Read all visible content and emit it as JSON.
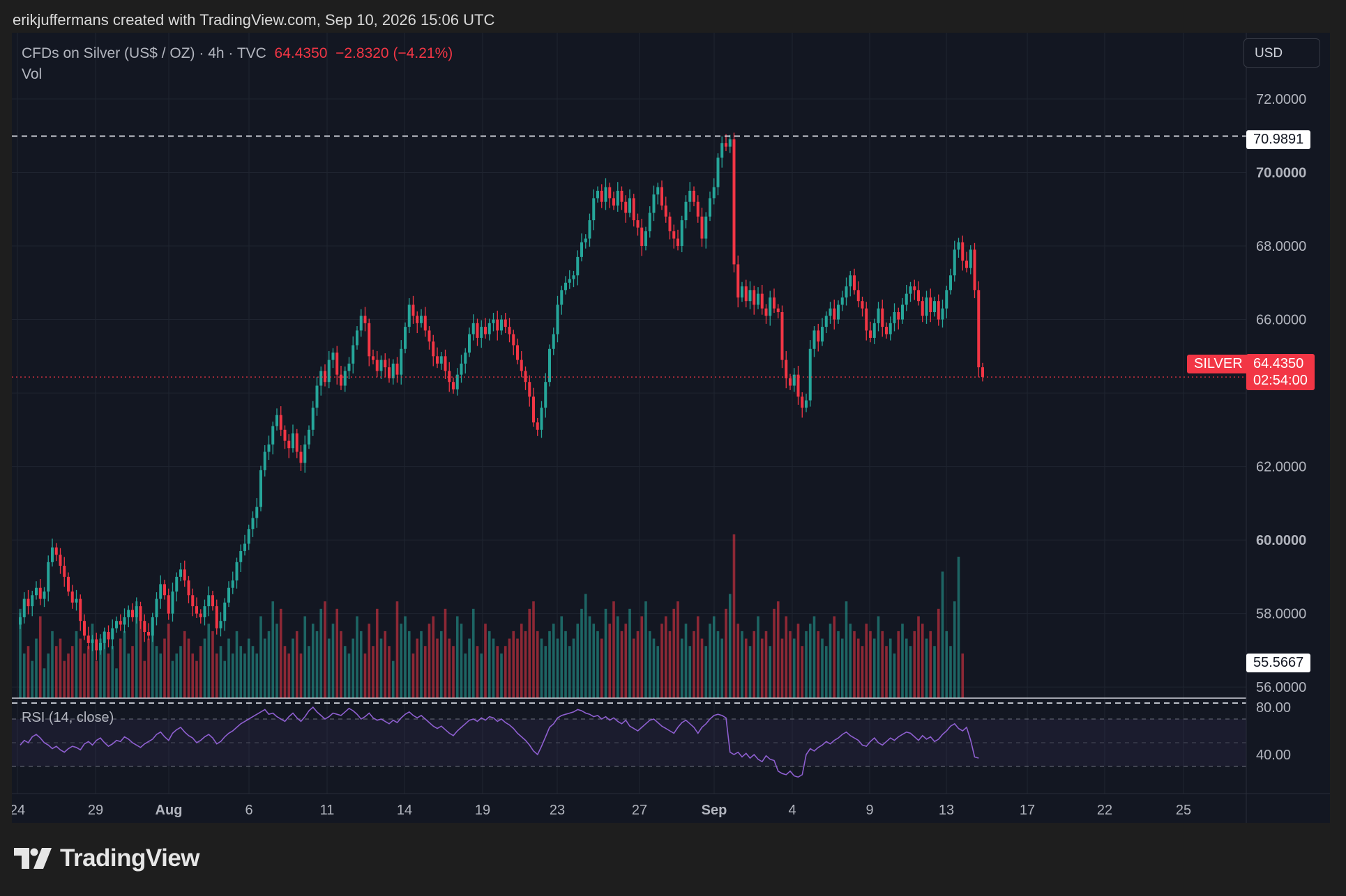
{
  "header": {
    "attribution": "erikjuffermans created with TradingView.com, Sep 10, 2026 15:06 UTC"
  },
  "legend": {
    "symbol_line": "CFDs on Silver (US$ / OZ) · 4h · TVC",
    "last_price": "64.4350",
    "change": "−2.8320 (−4.21%)",
    "volume_label": "Vol"
  },
  "currency_button": "USD",
  "price_tags": {
    "high_line": "70.9891",
    "low_line": "55.5667",
    "symbol": "SILVER",
    "last": "64.4350",
    "countdown": "02:54:00"
  },
  "rsi": {
    "label": "RSI (14, close)",
    "ticks": [
      "80.00",
      "40.00"
    ],
    "upper_band": 70,
    "lower_band": 30
  },
  "brand": {
    "name": "TradingView"
  },
  "colors": {
    "background": "#131722",
    "up": "#26a69a",
    "down": "#f23645",
    "rsi_line": "#8e5fd0",
    "grid": "#1f2430"
  },
  "chart_data": {
    "type": "candlestick",
    "title": "CFDs on Silver (US$ / OZ) · 4h · TVC",
    "x_ticks": [
      "24",
      "29",
      "Aug",
      "6",
      "11",
      "14",
      "19",
      "23",
      "27",
      "Sep",
      "4",
      "9",
      "13",
      "17",
      "22",
      "25"
    ],
    "y_ticks": [
      "72.0000",
      "70.0000",
      "68.0000",
      "66.0000",
      "62.0000",
      "60.0000",
      "58.0000",
      "56.0000"
    ],
    "y_range": [
      55.7,
      73.8
    ],
    "horizontal_lines": [
      70.9891,
      55.5667
    ],
    "last_price": 64.435,
    "close_series": [
      57.9,
      58.4,
      58.2,
      58.5,
      58.7,
      58.4,
      58.6,
      59.4,
      59.8,
      59.6,
      59.3,
      59.0,
      58.6,
      58.3,
      58.4,
      57.8,
      57.4,
      57.2,
      57.3,
      57.0,
      57.2,
      57.5,
      57.3,
      57.6,
      57.8,
      57.7,
      57.9,
      58.1,
      57.9,
      58.2,
      57.8,
      57.5,
      57.4,
      57.9,
      58.4,
      58.8,
      58.5,
      58.0,
      58.6,
      59.0,
      59.2,
      58.9,
      58.5,
      58.2,
      58.0,
      57.9,
      58.2,
      58.5,
      58.2,
      57.6,
      57.8,
      58.3,
      58.7,
      58.9,
      59.4,
      59.7,
      59.9,
      60.3,
      60.6,
      60.9,
      61.9,
      62.4,
      62.6,
      63.1,
      63.4,
      63.0,
      62.7,
      62.5,
      62.9,
      62.4,
      62.1,
      62.6,
      63.0,
      63.6,
      64.2,
      64.6,
      64.3,
      64.9,
      65.1,
      64.5,
      64.2,
      64.6,
      64.8,
      65.3,
      65.7,
      66.1,
      65.9,
      65.0,
      64.9,
      64.6,
      64.9,
      64.7,
      64.4,
      64.8,
      64.5,
      65.2,
      65.8,
      66.4,
      66.1,
      65.9,
      66.1,
      65.7,
      65.4,
      65.0,
      64.8,
      65.0,
      64.6,
      64.3,
      64.1,
      64.5,
      64.8,
      65.1,
      65.6,
      65.9,
      65.5,
      65.8,
      65.6,
      65.9,
      66.0,
      65.7,
      66.0,
      65.8,
      65.6,
      65.3,
      64.9,
      64.6,
      64.3,
      63.9,
      63.2,
      63.0,
      63.6,
      64.3,
      65.2,
      65.6,
      66.4,
      66.8,
      67.0,
      67.1,
      67.2,
      67.7,
      68.1,
      68.2,
      68.7,
      69.3,
      69.5,
      69.2,
      69.6,
      69.3,
      69.1,
      69.5,
      69.2,
      68.9,
      69.3,
      68.7,
      68.5,
      68.0,
      68.4,
      68.9,
      69.4,
      69.6,
      69.1,
      68.8,
      68.4,
      68.2,
      68.0,
      68.7,
      69.2,
      69.5,
      69.2,
      68.8,
      68.2,
      68.8,
      69.3,
      69.6,
      70.4,
      70.8,
      70.7,
      70.9,
      67.5,
      66.6,
      66.9,
      66.5,
      66.8,
      66.4,
      66.7,
      66.3,
      66.1,
      66.6,
      66.3,
      66.2,
      64.9,
      64.4,
      64.2,
      64.5,
      63.9,
      63.6,
      63.8,
      65.2,
      65.7,
      65.4,
      65.8,
      66.1,
      66.3,
      66.0,
      66.4,
      66.6,
      66.9,
      67.2,
      66.8,
      66.5,
      66.3,
      65.7,
      65.5,
      65.9,
      66.3,
      65.8,
      65.6,
      65.9,
      66.2,
      66.0,
      66.4,
      66.7,
      66.9,
      66.8,
      66.5,
      66.1,
      66.6,
      66.2,
      66.5,
      66.0,
      66.3,
      66.8,
      67.2,
      67.9,
      68.1,
      67.6,
      67.4,
      67.9,
      66.8,
      64.7,
      64.435
    ],
    "volume_series": [
      1.2,
      0.6,
      0.7,
      0.5,
      0.8,
      1.1,
      0.4,
      0.6,
      0.9,
      0.7,
      0.8,
      0.5,
      0.6,
      0.7,
      0.9,
      0.8,
      0.6,
      0.7,
      1.0,
      0.5,
      0.8,
      0.9,
      0.6,
      0.7,
      0.4,
      0.8,
      0.9,
      0.6,
      0.7,
      1.3,
      1.1,
      0.5,
      0.8,
      0.9,
      0.7,
      0.6,
      0.8,
      1.0,
      0.5,
      0.6,
      0.7,
      0.9,
      0.8,
      0.6,
      0.5,
      0.7,
      0.8,
      1.0,
      0.9,
      0.6,
      0.7,
      0.5,
      0.8,
      0.6,
      0.9,
      0.7,
      0.6,
      0.8,
      0.7,
      0.6,
      1.1,
      0.8,
      0.9,
      1.3,
      1.0,
      1.2,
      0.7,
      0.6,
      0.8,
      0.9,
      0.6,
      1.1,
      0.7,
      1.0,
      0.9,
      1.2,
      1.3,
      0.8,
      1.0,
      1.2,
      0.9,
      0.7,
      0.6,
      0.8,
      1.1,
      0.9,
      0.6,
      1.0,
      0.7,
      1.2,
      0.8,
      0.9,
      0.7,
      0.5,
      1.3,
      1.0,
      1.1,
      0.9,
      0.6,
      0.8,
      0.9,
      0.7,
      1.0,
      1.1,
      0.8,
      0.9,
      1.2,
      0.8,
      0.7,
      1.1,
      1.0,
      0.6,
      0.8,
      1.2,
      0.7,
      0.6,
      1.0,
      0.9,
      0.8,
      0.7,
      0.6,
      0.7,
      0.8,
      0.9,
      0.8,
      1.0,
      0.9,
      1.2,
      1.3,
      0.9,
      0.8,
      0.7,
      0.9,
      1.0,
      0.8,
      1.1,
      0.9,
      0.7,
      0.8,
      1.0,
      1.2,
      1.4,
      1.1,
      1.0,
      0.9,
      0.8,
      1.2,
      1.0,
      1.3,
      1.1,
      0.9,
      1.0,
      1.2,
      0.8,
      0.9,
      1.1,
      1.3,
      0.9,
      0.8,
      0.7,
      1.0,
      1.1,
      0.9,
      1.2,
      1.3,
      0.8,
      1.0,
      0.7,
      0.9,
      1.1,
      0.8,
      0.7,
      1.0,
      1.1,
      0.9,
      0.8,
      1.2,
      1.4,
      2.2,
      1.0,
      0.9,
      0.8,
      0.7,
      0.9,
      1.1,
      0.8,
      0.9,
      0.7,
      1.2,
      1.3,
      0.8,
      1.1,
      0.9,
      0.8,
      1.0,
      0.7,
      0.9,
      1.0,
      1.1,
      0.9,
      0.8,
      0.7,
      1.0,
      1.1,
      0.9,
      0.8,
      1.3,
      1.0,
      0.9,
      0.8,
      0.7,
      1.0,
      0.9,
      0.8,
      1.1,
      0.9,
      0.7,
      0.8,
      0.6,
      0.9,
      1.0,
      0.8,
      0.7,
      0.9,
      1.1,
      1.0,
      0.8,
      0.9,
      0.7,
      1.2,
      1.7,
      0.9,
      0.7,
      1.3,
      1.9,
      0.6
    ],
    "rsi_series": [
      48,
      52,
      50,
      55,
      57,
      54,
      50,
      48,
      45,
      47,
      44,
      42,
      45,
      47,
      46,
      44,
      49,
      51,
      48,
      52,
      54,
      50,
      47,
      49,
      52,
      51,
      55,
      53,
      50,
      48,
      46,
      49,
      51,
      53,
      57,
      59,
      55,
      52,
      58,
      61,
      63,
      59,
      56,
      54,
      50,
      52,
      55,
      57,
      54,
      49,
      51,
      55,
      58,
      60,
      63,
      66,
      68,
      70,
      72,
      74,
      76,
      78,
      74,
      75,
      72,
      70,
      68,
      72,
      75,
      71,
      68,
      72,
      77,
      80,
      76,
      73,
      70,
      72,
      75,
      74,
      73,
      76,
      79,
      77,
      74,
      70,
      72,
      75,
      71,
      69,
      70,
      68,
      66,
      69,
      67,
      71,
      74,
      76,
      73,
      71,
      73,
      70,
      67,
      64,
      62,
      64,
      61,
      58,
      56,
      60,
      63,
      66,
      69,
      70,
      68,
      71,
      69,
      72,
      71,
      68,
      70,
      67,
      65,
      62,
      58,
      55,
      52,
      48,
      43,
      40,
      47,
      55,
      63,
      66,
      71,
      73,
      74,
      75,
      76,
      78,
      77,
      75,
      74,
      72,
      73,
      70,
      72,
      69,
      71,
      68,
      66,
      69,
      64,
      62,
      60,
      63,
      66,
      69,
      70,
      67,
      64,
      62,
      60,
      58,
      63,
      67,
      69,
      66,
      63,
      58,
      63,
      66,
      70,
      73,
      74,
      73,
      71,
      42,
      40,
      42,
      38,
      41,
      37,
      40,
      36,
      34,
      39,
      36,
      35,
      26,
      24,
      23,
      26,
      22,
      21,
      23,
      40,
      45,
      43,
      46,
      48,
      51,
      49,
      52,
      54,
      57,
      59,
      56,
      54,
      52,
      48,
      47,
      51,
      54,
      50,
      48,
      51,
      54,
      52,
      55,
      57,
      59,
      58,
      55,
      52,
      56,
      53,
      55,
      51,
      53,
      57,
      60,
      64,
      66,
      62,
      60,
      63,
      52,
      38,
      37
    ]
  }
}
